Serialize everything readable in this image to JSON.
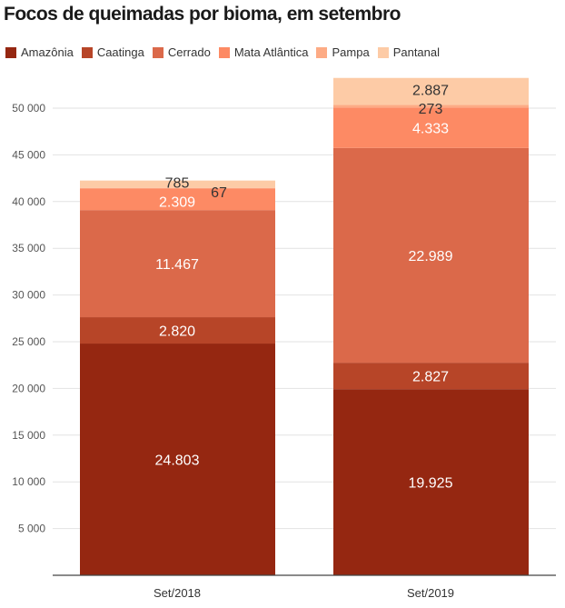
{
  "title": "Focos de queimadas por bioma, em setembro",
  "chart_data": {
    "type": "bar",
    "stacked": true,
    "title": "Focos de queimadas por bioma, em setembro",
    "xlabel": "",
    "ylabel": "",
    "categories": [
      "Set/2018",
      "Set/2019"
    ],
    "ylim": [
      0,
      52000
    ],
    "yticks": [
      5000,
      10000,
      15000,
      20000,
      25000,
      30000,
      35000,
      40000,
      45000,
      50000
    ],
    "ytick_labels": [
      "5 000",
      "10 000",
      "15 000",
      "20 000",
      "25 000",
      "30 000",
      "35 000",
      "40 000",
      "45 000",
      "50 000"
    ],
    "grid": true,
    "legend_position": "top-left",
    "series": [
      {
        "name": "Amazônia",
        "color": "#952711",
        "values": [
          24803,
          19925
        ],
        "labels": [
          "24.803",
          "19.925"
        ]
      },
      {
        "name": "Caatinga",
        "color": "#b74528",
        "values": [
          2820,
          2827
        ],
        "labels": [
          "2.820",
          "2.827"
        ]
      },
      {
        "name": "Cerrado",
        "color": "#db694a",
        "values": [
          11467,
          22989
        ],
        "labels": [
          "11.467",
          "22.989"
        ]
      },
      {
        "name": "Mata Atlântica",
        "color": "#fd8a64",
        "values": [
          2309,
          4333
        ],
        "labels": [
          "2.309",
          "4.333"
        ]
      },
      {
        "name": "Pampa",
        "color": "#fdab85",
        "values": [
          67,
          273
        ],
        "labels": [
          "67",
          "273"
        ]
      },
      {
        "name": "Pantanal",
        "color": "#fdcba6",
        "values": [
          785,
          2887
        ],
        "labels": [
          "785",
          "2.887"
        ]
      }
    ]
  }
}
